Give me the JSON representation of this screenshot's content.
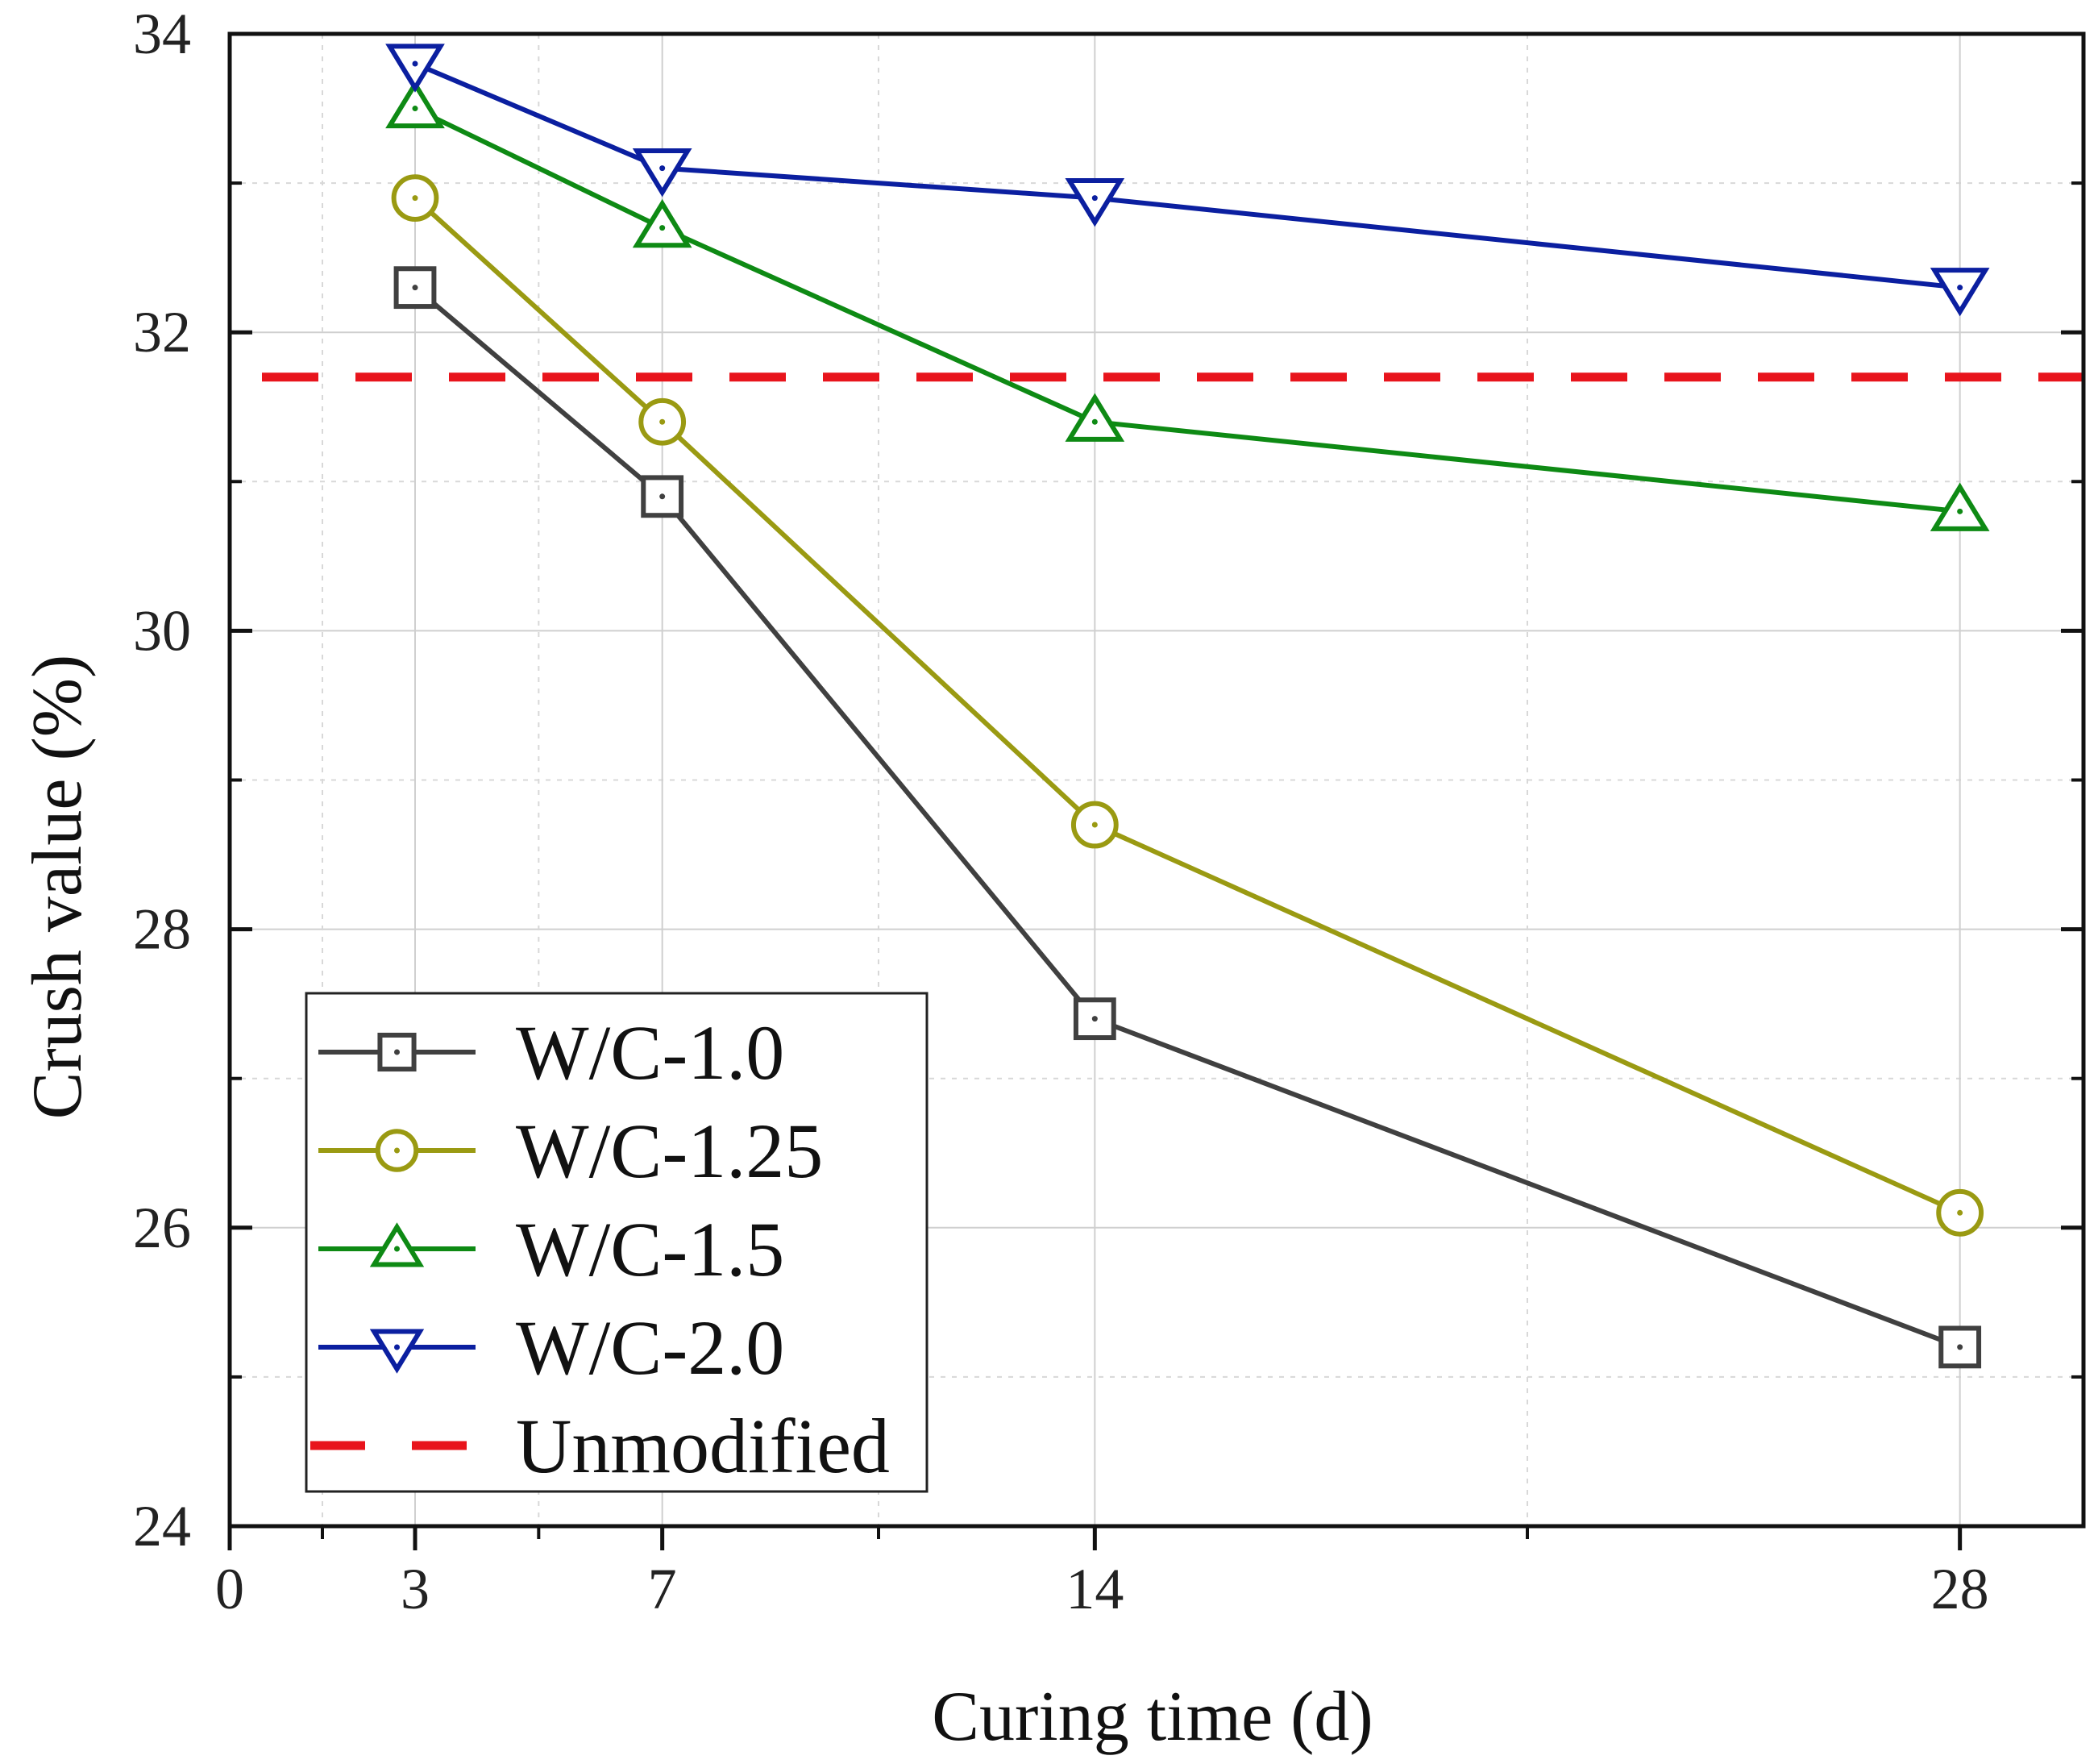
{
  "chart_data": {
    "type": "line",
    "title": "",
    "xlabel": "Curing time (d)",
    "ylabel": "Crush value (%)",
    "xlim": [
      0,
      30
    ],
    "ylim": [
      24,
      34
    ],
    "xticks": [
      0,
      3,
      7,
      14,
      28
    ],
    "xtick_labels": [
      "0",
      "3",
      "7",
      "14",
      "28"
    ],
    "yticks": [
      24,
      26,
      28,
      30,
      32,
      34
    ],
    "ytick_labels": [
      "24",
      "26",
      "28",
      "30",
      "32",
      "34"
    ],
    "grid": true,
    "legend_position": "bottom-left",
    "x": [
      3,
      7,
      14,
      28
    ],
    "series": [
      {
        "name": "W/C-1.0",
        "marker": "square",
        "color": "#404040",
        "values": [
          32.3,
          30.9,
          27.4,
          25.2
        ]
      },
      {
        "name": "W/C-1.25",
        "marker": "circle",
        "color": "#9a9a12",
        "values": [
          32.9,
          31.4,
          28.7,
          26.1
        ]
      },
      {
        "name": "W/C-1.5",
        "marker": "triangle-up",
        "color": "#0e8a14",
        "values": [
          33.5,
          32.7,
          31.4,
          30.8
        ]
      },
      {
        "name": "W/C-2.0",
        "marker": "triangle-down",
        "color": "#0b1fa0",
        "values": [
          33.8,
          33.1,
          32.9,
          32.3
        ]
      }
    ],
    "reference_lines": [
      {
        "name": "Unmodified",
        "y": 31.7,
        "style": "dashed",
        "color": "#e8141c"
      }
    ]
  }
}
